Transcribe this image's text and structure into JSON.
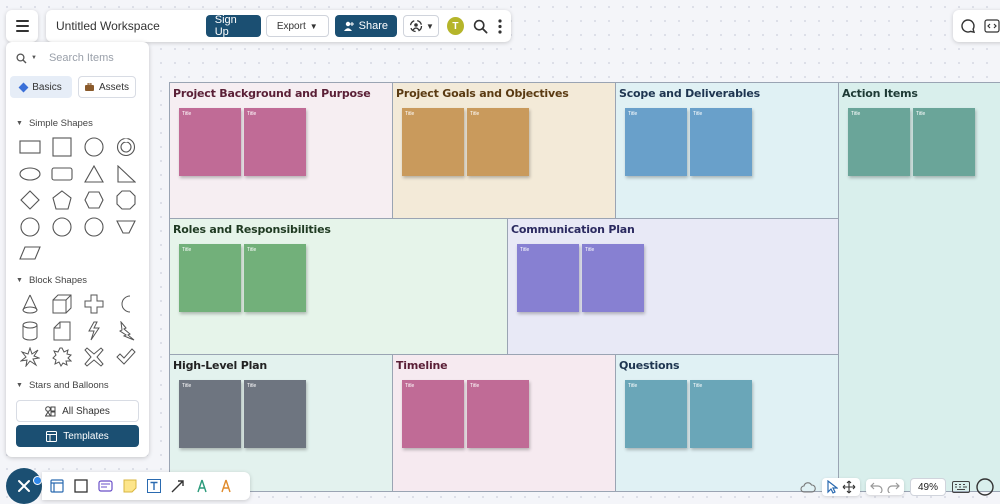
{
  "toolbar": {
    "workspace_title": "Untitled Workspace",
    "signup_label": "Sign Up",
    "export_label": "Export",
    "share_label": "Share",
    "avatar_initial": "T"
  },
  "panel": {
    "search_placeholder": "Search Items",
    "tab_basics": "Basics",
    "tab_assets": "Assets",
    "section_simple": "Simple Shapes",
    "section_block": "Block Shapes",
    "section_stars": "Stars and Balloons",
    "all_shapes_label": "All Shapes",
    "templates_label": "Templates"
  },
  "board": {
    "note_label": "Title",
    "sections": [
      {
        "title": "Project Background and Purpose",
        "title_color": "#5a1f36",
        "bg": "#f6eef2",
        "note_color": "#c06b96"
      },
      {
        "title": "Project Goals and Objectives",
        "title_color": "#5a3a12",
        "bg": "#f3ead8",
        "note_color": "#c99a5c"
      },
      {
        "title": "Scope and Deliverables",
        "title_color": "#1e3550",
        "bg": "#e0f1f4",
        "note_color": "#69a0ca"
      },
      {
        "title": "Action Items",
        "title_color": "#1e3a35",
        "bg": "#d9efec",
        "note_color": "#6aa599"
      },
      {
        "title": "Roles and Responsibilities",
        "title_color": "#1f3a22",
        "bg": "#e6f4ea",
        "note_color": "#72b07a"
      },
      {
        "title": "Communication Plan",
        "title_color": "#2b2a60",
        "bg": "#e8e9f6",
        "note_color": "#8780d2"
      },
      {
        "title": "High-Level Plan",
        "title_color": "#222222",
        "bg": "#e3f2ee",
        "note_color": "#6e7580"
      },
      {
        "title": "Timeline",
        "title_color": "#5a1f36",
        "bg": "#f6eaf0",
        "note_color": "#c06b96"
      },
      {
        "title": "Questions",
        "title_color": "#1e3550",
        "bg": "#e0f1f4",
        "note_color": "#6aa6b8"
      }
    ]
  },
  "bottom": {
    "zoom_level": "49%"
  },
  "colors": {
    "accent": "#1b4f72",
    "frame_border": "#9aa4b3"
  }
}
